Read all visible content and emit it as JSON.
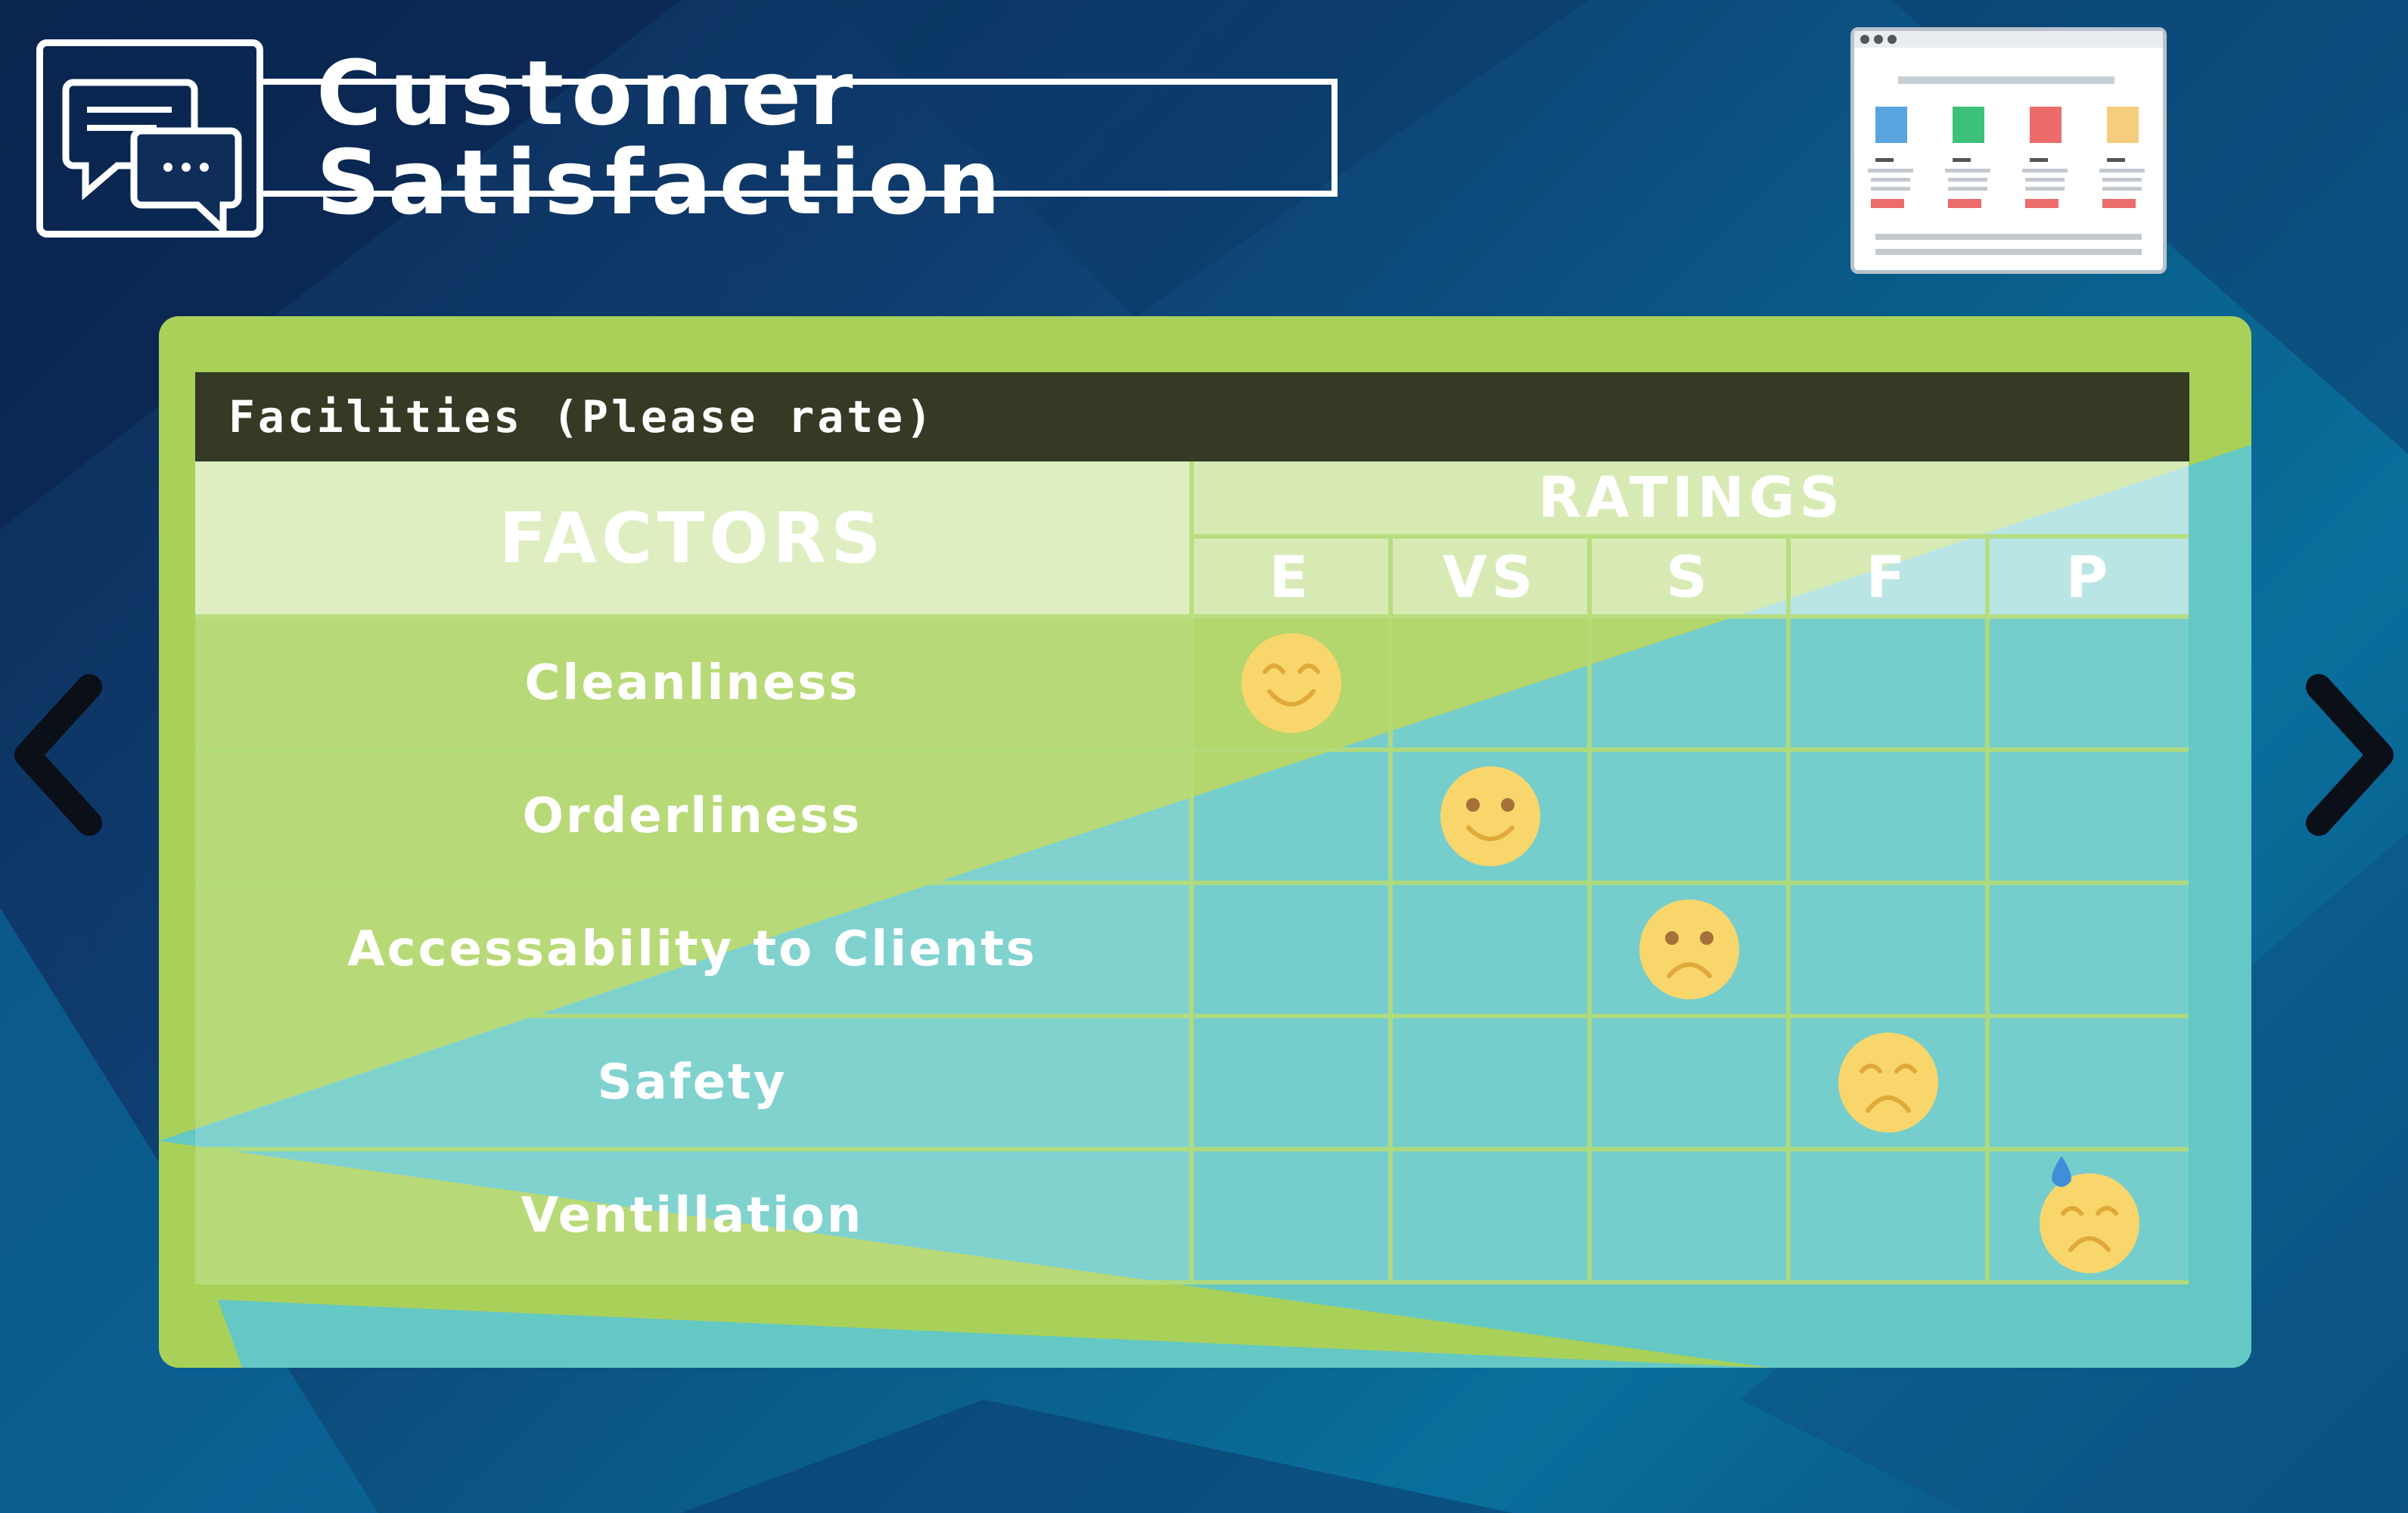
{
  "header": {
    "title": "Customer Satisfaction"
  },
  "section": {
    "title": "Facilities (Please rate)"
  },
  "table": {
    "factors_header": "FACTORS",
    "ratings_header": "RATINGS",
    "scale": [
      "E",
      "VS",
      "S",
      "F",
      "P"
    ],
    "rows": [
      {
        "factor": "Cleanliness",
        "rating": "E",
        "face": "grin"
      },
      {
        "factor": "Orderliness",
        "rating": "VS",
        "face": "smile"
      },
      {
        "factor": "Accessability to Clients",
        "rating": "S",
        "face": "frown"
      },
      {
        "factor": "Safety",
        "rating": "F",
        "face": "sad"
      },
      {
        "factor": "Ventillation",
        "rating": "P",
        "face": "sweat-sad"
      }
    ]
  },
  "colors": {
    "panel_green": "#a9d159",
    "overlay_teal": "#5cc7d0",
    "header_dark": "#343a24",
    "emoji_yellow": "#f8d66b"
  },
  "icons": {
    "header_icon": "chat-bubbles-icon",
    "illustration": "browser-window-icon",
    "prev": "chevron-left-icon",
    "next": "chevron-right-icon"
  }
}
